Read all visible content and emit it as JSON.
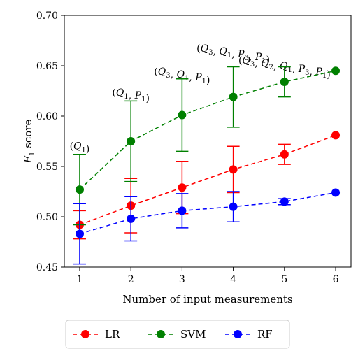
{
  "chart_data": {
    "type": "line",
    "x": [
      1,
      2,
      3,
      4,
      5,
      6
    ],
    "xlabel": "Number of input measurements",
    "ylabel_prefix": "F",
    "ylabel_sub": "1",
    "ylabel_suffix": " score",
    "xlim": [
      0.7,
      6.3
    ],
    "ylim": [
      0.45,
      0.7
    ],
    "xticks": [
      "1",
      "2",
      "3",
      "4",
      "5",
      "6"
    ],
    "yticks": [
      "0.45",
      "0.50",
      "0.55",
      "0.60",
      "0.65",
      "0.70"
    ],
    "grid": false,
    "legend_position": "bottom-center",
    "series": [
      {
        "name": "LR",
        "color": "#ff0000",
        "values": [
          0.492,
          0.511,
          0.529,
          0.547,
          0.562,
          0.581
        ],
        "err": [
          0.014,
          0.027,
          0.026,
          0.023,
          0.01,
          0.0
        ]
      },
      {
        "name": "SVM",
        "color": "#008000",
        "values": [
          0.527,
          0.575,
          0.601,
          0.619,
          0.634,
          0.645
        ],
        "err": [
          0.035,
          0.04,
          0.036,
          0.03,
          0.015,
          0.0
        ]
      },
      {
        "name": "RF",
        "color": "#0000ff",
        "values": [
          0.483,
          0.498,
          0.506,
          0.51,
          0.515,
          0.524
        ],
        "err": [
          0.03,
          0.022,
          0.017,
          0.015,
          0.003,
          0.0
        ]
      }
    ],
    "annotations": [
      {
        "x": 1,
        "y": 0.567,
        "parts": [
          [
            "(",
            ""
          ],
          [
            "Q",
            "1"
          ],
          [
            ")",
            ""
          ]
        ]
      },
      {
        "x": 2,
        "y": 0.62,
        "parts": [
          [
            "(",
            ""
          ],
          [
            "Q",
            "1"
          ],
          [
            ", ",
            ""
          ],
          [
            "P",
            "1"
          ],
          [
            ")",
            ""
          ]
        ]
      },
      {
        "x": 3,
        "y": 0.641,
        "parts": [
          [
            "(",
            ""
          ],
          [
            "Q",
            "3"
          ],
          [
            ", ",
            ""
          ],
          [
            "Q",
            "1"
          ],
          [
            ", ",
            ""
          ],
          [
            "P",
            "1"
          ],
          [
            ")",
            ""
          ]
        ]
      },
      {
        "x": 4,
        "y": 0.664,
        "parts": [
          [
            "(",
            ""
          ],
          [
            "Q",
            "3"
          ],
          [
            ", ",
            ""
          ],
          [
            "Q",
            "1"
          ],
          [
            ", ",
            ""
          ],
          [
            "P",
            "3"
          ],
          [
            ", ",
            ""
          ],
          [
            "P",
            "1"
          ],
          [
            ")",
            ""
          ]
        ]
      },
      {
        "x": 5,
        "y": 0.652,
        "parts": [
          [
            "(",
            ""
          ],
          [
            "Q",
            "3"
          ],
          [
            ", ",
            ""
          ],
          [
            "Q",
            "2"
          ],
          [
            ", ",
            ""
          ],
          [
            "Q",
            "1"
          ],
          [
            ", ",
            ""
          ],
          [
            "P",
            "3"
          ],
          [
            ", ",
            ""
          ],
          [
            "P",
            "1"
          ],
          [
            ")",
            ""
          ]
        ]
      }
    ]
  }
}
